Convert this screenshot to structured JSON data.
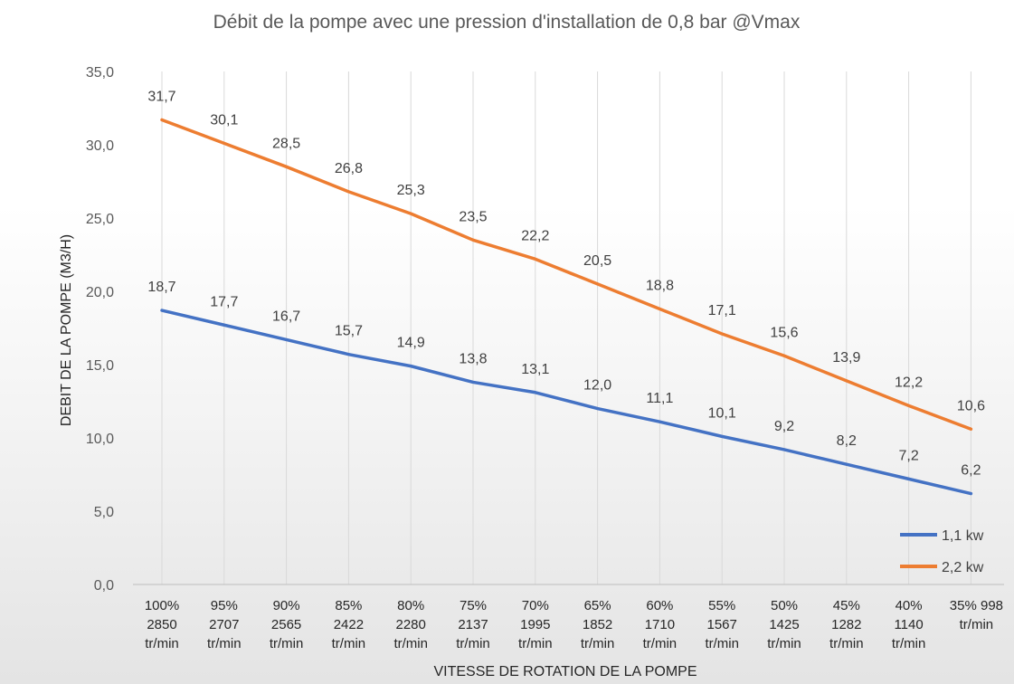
{
  "chart_data": {
    "type": "line",
    "title": "Débit de la pompe avec une pression d'installation de 0,8 bar @Vmax",
    "xlabel": "VITESSE DE ROTATION DE LA POMPE",
    "ylabel": "DEBIT DE LA POMPE (M3/H)",
    "ylim": [
      0,
      35
    ],
    "yticks": [
      "0,0",
      "5,0",
      "10,0",
      "15,0",
      "20,0",
      "25,0",
      "30,0",
      "35,0"
    ],
    "categories": [
      [
        "100%",
        "2850",
        "tr/min"
      ],
      [
        "95%",
        "2707",
        "tr/min"
      ],
      [
        "90%",
        "2565",
        "tr/min"
      ],
      [
        "85%",
        "2422",
        "tr/min"
      ],
      [
        "80%",
        "2280",
        "tr/min"
      ],
      [
        "75%",
        "2137",
        "tr/min"
      ],
      [
        "70%",
        "1995",
        "tr/min"
      ],
      [
        "65%",
        "1852",
        "tr/min"
      ],
      [
        "60%",
        "1710",
        "tr/min"
      ],
      [
        "55%",
        "1567",
        "tr/min"
      ],
      [
        "50%",
        "1425",
        "tr/min"
      ],
      [
        "45%",
        "1282",
        "tr/min"
      ],
      [
        "40%",
        "1140",
        "tr/min"
      ],
      [
        "35% 998",
        "tr/min"
      ]
    ],
    "series": [
      {
        "name": "1,1 kw",
        "color": "#4472C4",
        "values": [
          18.7,
          17.7,
          16.7,
          15.7,
          14.9,
          13.8,
          13.1,
          12.0,
          11.1,
          10.1,
          9.2,
          8.2,
          7.2,
          6.2
        ]
      },
      {
        "name": "2,2 kw",
        "color": "#ED7D31",
        "values": [
          31.7,
          30.1,
          28.5,
          26.8,
          25.3,
          23.5,
          22.2,
          20.5,
          18.8,
          17.1,
          15.6,
          13.9,
          12.2,
          10.6
        ]
      }
    ],
    "grid": "vertical",
    "legend": "bottom-right"
  }
}
